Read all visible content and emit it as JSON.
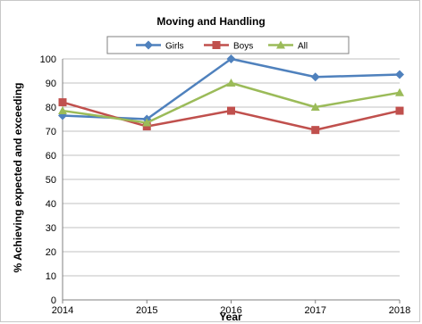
{
  "chart_data": {
    "type": "line",
    "title": "Moving and Handling",
    "xlabel": "Year",
    "ylabel": "% Achieving expected and exceeding",
    "x": [
      2014,
      2015,
      2016,
      2017,
      2018
    ],
    "x_tick_labels": [
      "2014",
      "2015",
      "2016",
      "2017",
      "2018"
    ],
    "ylim": [
      0,
      100
    ],
    "y_ticks": [
      0,
      10,
      20,
      30,
      40,
      50,
      60,
      70,
      80,
      90,
      100
    ],
    "grid": "horizontal",
    "legend_position": "top",
    "series": [
      {
        "name": "Girls",
        "values": [
          76.5,
          75,
          100,
          92.5,
          93.5
        ],
        "color": "#4f81bd",
        "marker": "diamond"
      },
      {
        "name": "Boys",
        "values": [
          82,
          72,
          78.5,
          70.5,
          78.5
        ],
        "color": "#c0504d",
        "marker": "square"
      },
      {
        "name": "All",
        "values": [
          78.5,
          73.5,
          90,
          80,
          86
        ],
        "color": "#9bbb59",
        "marker": "triangle"
      }
    ]
  }
}
